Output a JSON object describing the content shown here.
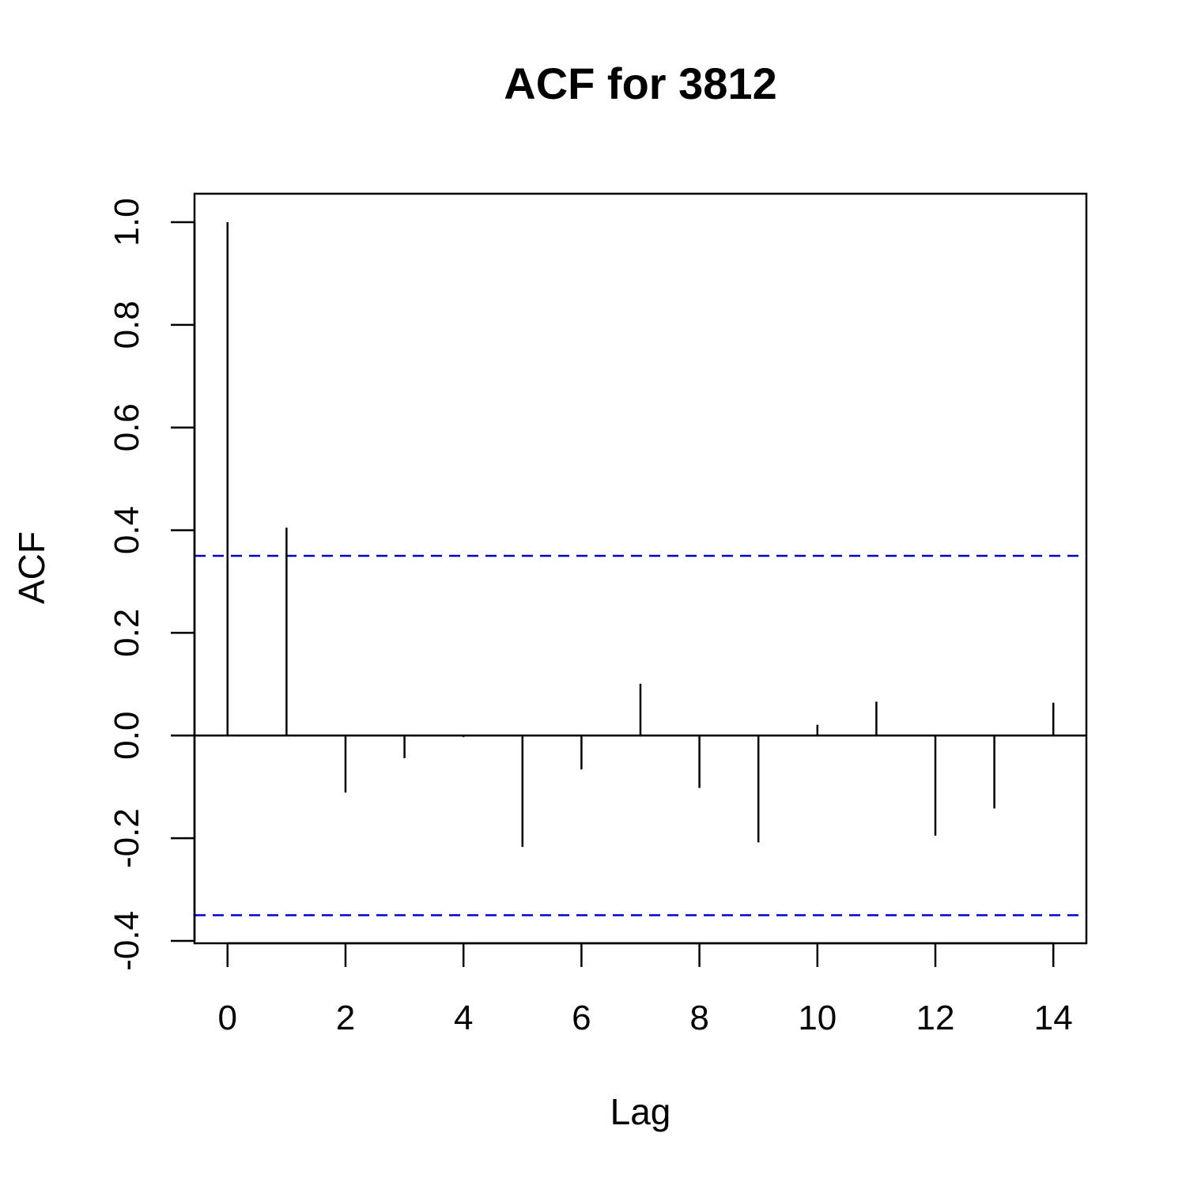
{
  "chart_data": {
    "type": "bar",
    "title": "ACF for 3812",
    "xlabel": "Lag",
    "ylabel": "ACF",
    "x": [
      0,
      1,
      2,
      3,
      4,
      5,
      6,
      7,
      8,
      9,
      10,
      11,
      12,
      13,
      14
    ],
    "values": [
      1.0,
      0.405,
      -0.111,
      -0.044,
      -0.003,
      -0.217,
      -0.066,
      0.101,
      -0.102,
      -0.208,
      0.021,
      0.066,
      -0.195,
      -0.142,
      0.064
    ],
    "confidence_bound": 0.35,
    "confidence_color": "#0000cc",
    "xlim": [
      -0.56,
      14.56
    ],
    "ylim": [
      -0.4,
      1.0
    ],
    "xticks": [
      "0",
      "2",
      "4",
      "6",
      "8",
      "10",
      "12",
      "14"
    ],
    "yticks": [
      "-0.4",
      "-0.2",
      "0.0",
      "0.2",
      "0.4",
      "0.6",
      "0.8",
      "1.0"
    ],
    "grid": false,
    "legend": "none"
  }
}
